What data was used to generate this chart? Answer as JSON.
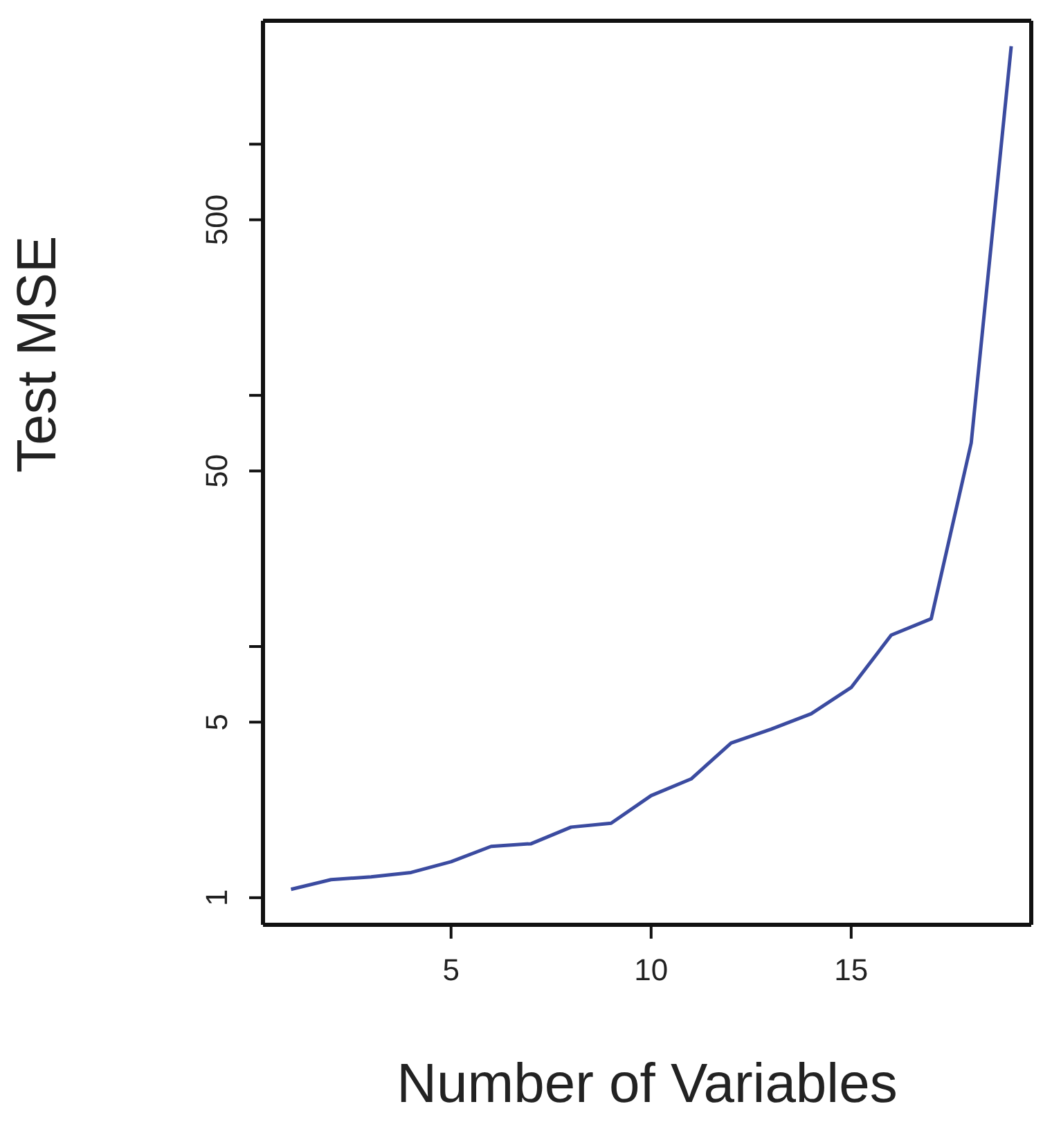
{
  "chart_data": {
    "type": "line",
    "xlabel": "Number of Variables",
    "ylabel": "Test MSE",
    "log": "y",
    "x": [
      1,
      2,
      3,
      4,
      5,
      6,
      7,
      8,
      9,
      10,
      11,
      12,
      13,
      14,
      15,
      16,
      17,
      18,
      19
    ],
    "values": [
      1.08,
      1.18,
      1.21,
      1.26,
      1.39,
      1.6,
      1.64,
      1.91,
      1.98,
      2.55,
      2.97,
      4.13,
      4.69,
      5.4,
      6.87,
      11.1,
      12.9,
      64.7,
      2455
    ],
    "color": "#3b4ba0",
    "xlim": [
      0.3,
      19.5
    ],
    "ylim": [
      0.78,
      3100
    ],
    "xticks": [
      5,
      10,
      15
    ],
    "yticks": [
      1,
      5,
      {
        "value": 10,
        "label": null
      },
      50,
      {
        "value": 100,
        "label": null
      },
      500,
      {
        "value": 1000,
        "label": null
      }
    ]
  }
}
